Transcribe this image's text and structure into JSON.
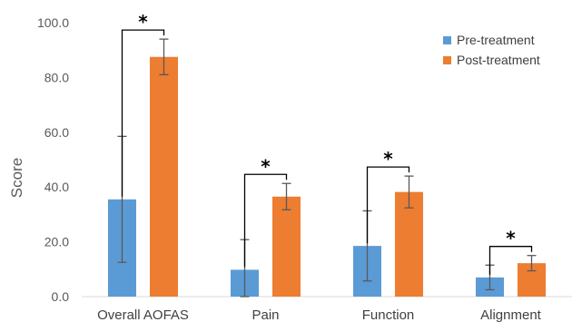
{
  "chart_data": {
    "type": "bar",
    "title": "",
    "xlabel": "",
    "ylabel": "Score",
    "ylim": [
      0,
      100
    ],
    "yticks": [
      "0.0",
      "20.0",
      "40.0",
      "60.0",
      "80.0",
      "100.0"
    ],
    "categories": [
      "Overall AOFAS",
      "Pain",
      "Function",
      "Alignment"
    ],
    "series": [
      {
        "name": "Pre-treatment",
        "color": "#5b9bd5",
        "values": [
          35.5,
          9.8,
          18.5,
          7.0
        ],
        "error": [
          23.0,
          11.0,
          12.8,
          4.5
        ]
      },
      {
        "name": "Post-treatment",
        "color": "#ed7d31",
        "values": [
          87.5,
          36.5,
          38.2,
          12.2
        ],
        "error": [
          6.5,
          4.8,
          5.8,
          2.8
        ]
      }
    ],
    "significance": [
      "*",
      "*",
      "*",
      "*"
    ],
    "legend_position": "top-right",
    "grid": false
  }
}
